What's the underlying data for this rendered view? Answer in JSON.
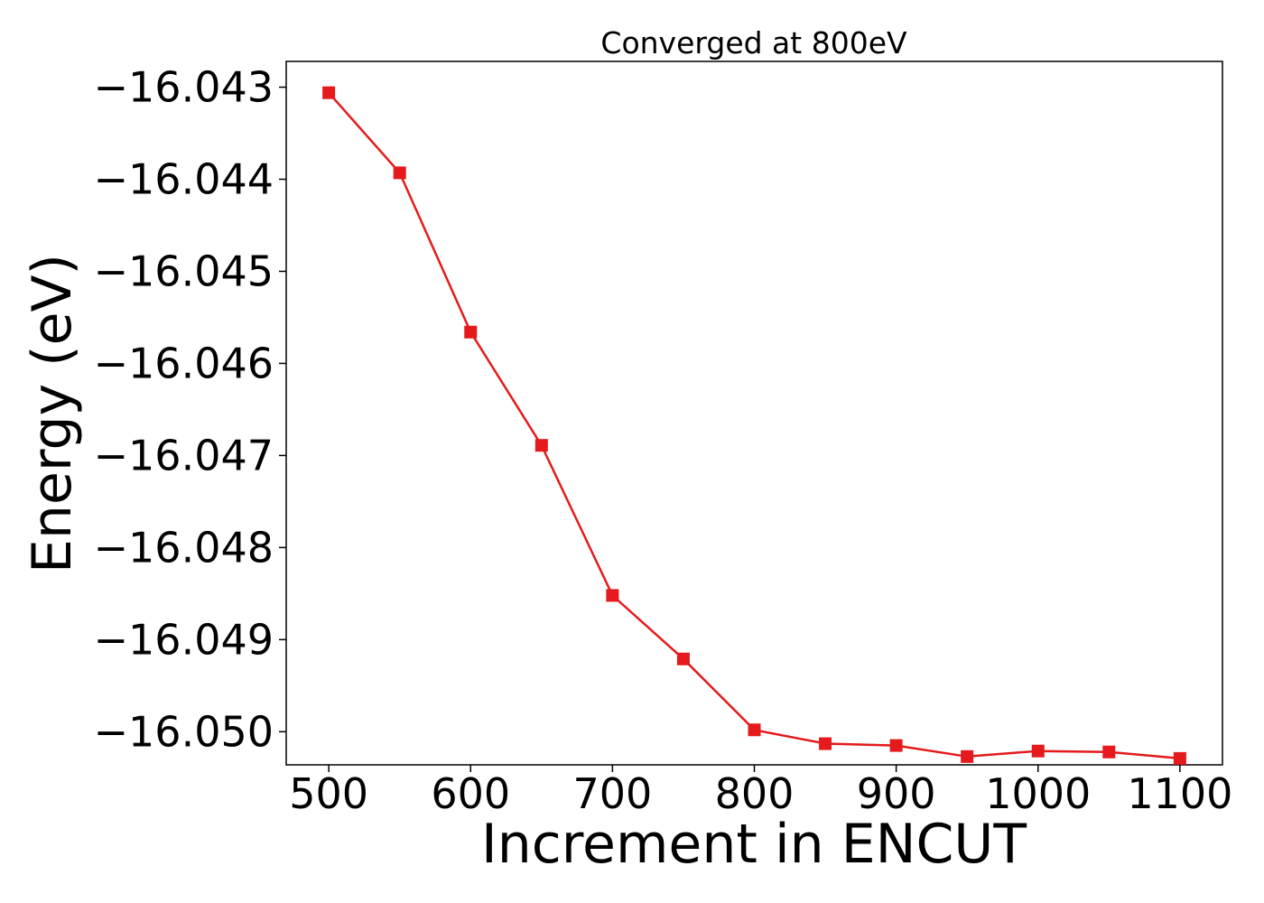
{
  "chart_data": {
    "type": "line",
    "title": "Converged at 800eV",
    "xlabel": "Increment in ENCUT",
    "ylabel": "Energy (eV)",
    "x": [
      500,
      550,
      600,
      650,
      700,
      750,
      800,
      850,
      900,
      950,
      1000,
      1050,
      1100
    ],
    "series": [
      {
        "values": [
          -16.04306,
          -16.04393,
          -16.04566,
          -16.04689,
          -16.04852,
          -16.04921,
          -16.04998,
          -16.05013,
          -16.05015,
          -16.05027,
          -16.05021,
          -16.05022,
          -16.05029
        ],
        "color": "#e41a1c",
        "marker": "square"
      }
    ],
    "xticks": [
      500,
      600,
      700,
      800,
      900,
      1000,
      1100
    ],
    "xtick_labels": [
      "500",
      "600",
      "700",
      "800",
      "900",
      "1000",
      "1100"
    ],
    "yticks": [
      -16.043,
      -16.044,
      -16.045,
      -16.046,
      -16.047,
      -16.048,
      -16.049,
      -16.05
    ],
    "ytick_labels": [
      "−16.043",
      "−16.044",
      "−16.045",
      "−16.046",
      "−16.047",
      "−16.048",
      "−16.049",
      "−16.050"
    ],
    "xlim": [
      470,
      1130
    ],
    "ylim": [
      -16.05036,
      -16.04272
    ],
    "grid": false,
    "legend": "none"
  }
}
